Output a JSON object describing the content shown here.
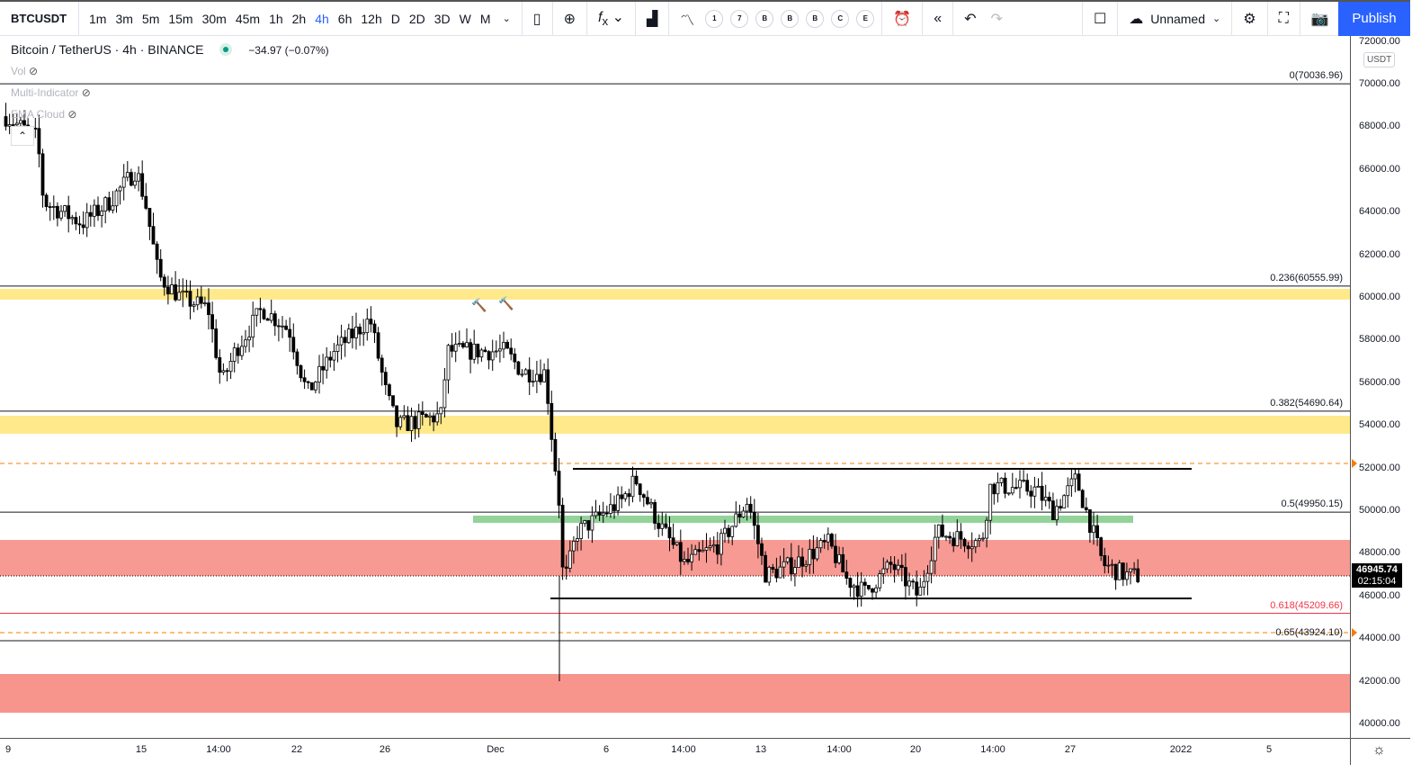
{
  "toolbar": {
    "symbol": "BTCUSDT",
    "timeframes": [
      "1m",
      "3m",
      "5m",
      "15m",
      "30m",
      "45m",
      "1h",
      "2h",
      "4h",
      "6h",
      "12h",
      "D",
      "2D",
      "3D",
      "W",
      "M"
    ],
    "active_timeframe": "4h",
    "indicator_circles": [
      "1",
      "7",
      "B",
      "B",
      "B",
      "C",
      "E"
    ],
    "layout_name": "Unnamed",
    "publish": "Publish"
  },
  "legend": {
    "title": "Bitcoin / TetherUS · 4h · BINANCE",
    "change": "−34.97 (−0.07%)",
    "status_color": "#089981",
    "indicators": [
      "Vol",
      "Multi-Indicator",
      "EMA Cloud"
    ]
  },
  "price_axis": {
    "currency": "USDT",
    "labels": [
      "72000.00",
      "70000.00",
      "68000.00",
      "66000.00",
      "64000.00",
      "62000.00",
      "60000.00",
      "58000.00",
      "56000.00",
      "54000.00",
      "52000.00",
      "50000.00",
      "48000.00",
      "46000.00",
      "44000.00",
      "42000.00",
      "40000.00"
    ],
    "current_price": "46945.74",
    "countdown": "02:15:04"
  },
  "time_axis": {
    "labels": [
      "9",
      "15",
      "14:00",
      "22",
      "26",
      "Dec",
      "6",
      "14:00",
      "13",
      "14:00",
      "20",
      "14:00",
      "27",
      "2022",
      "5"
    ]
  },
  "fib_levels": [
    {
      "label": "0(70036.96)",
      "price": 70036.96,
      "color": "#131722"
    },
    {
      "label": "0.236(60555.99)",
      "price": 60555.99,
      "color": "#131722"
    },
    {
      "label": "0.382(54690.64)",
      "price": 54690.64,
      "color": "#131722"
    },
    {
      "label": "0.5(49950.15)",
      "price": 49950.15,
      "color": "#131722"
    },
    {
      "label": "0.618(45209.66)",
      "price": 45209.66,
      "color": "#f23645"
    },
    {
      "label": "0.65(43924.10)",
      "price": 43924.1,
      "color": "#131722"
    }
  ],
  "zones": {
    "yellow": "#ffe98a",
    "red": "#f7958d",
    "green": "#93d39a",
    "alert": "#f57c00"
  },
  "chart_data": {
    "type": "candlestick",
    "price_path": [
      [
        5,
        68500
      ],
      [
        40,
        67500
      ],
      [
        47,
        64500
      ],
      [
        90,
        63500
      ],
      [
        120,
        64500
      ],
      [
        150,
        66000
      ],
      [
        160,
        64500
      ],
      [
        175,
        61000
      ],
      [
        200,
        60000
      ],
      [
        230,
        59500
      ],
      [
        245,
        56000
      ],
      [
        260,
        57500
      ],
      [
        290,
        59500
      ],
      [
        320,
        58500
      ],
      [
        340,
        55500
      ],
      [
        370,
        57500
      ],
      [
        410,
        59000
      ],
      [
        428,
        55500
      ],
      [
        440,
        54000
      ],
      [
        490,
        54500
      ],
      [
        495,
        57500
      ],
      [
        530,
        57500
      ],
      [
        560,
        57500
      ],
      [
        580,
        56500
      ],
      [
        605,
        56500
      ],
      [
        612,
        53500
      ],
      [
        620,
        50500
      ],
      [
        625,
        46500
      ],
      [
        640,
        49000
      ],
      [
        690,
        50500
      ],
      [
        705,
        51500
      ],
      [
        730,
        49500
      ],
      [
        760,
        47500
      ],
      [
        800,
        48500
      ],
      [
        830,
        50500
      ],
      [
        850,
        47000
      ],
      [
        880,
        47500
      ],
      [
        920,
        48500
      ],
      [
        940,
        46800
      ],
      [
        960,
        46200
      ],
      [
        990,
        47500
      ],
      [
        1020,
        46000
      ],
      [
        1040,
        49000
      ],
      [
        1090,
        48500
      ],
      [
        1100,
        51200
      ],
      [
        1150,
        51000
      ],
      [
        1170,
        50000
      ],
      [
        1195,
        51500
      ],
      [
        1210,
        49500
      ],
      [
        1225,
        47500
      ],
      [
        1250,
        47000
      ],
      [
        1265,
        46945.74
      ]
    ]
  }
}
